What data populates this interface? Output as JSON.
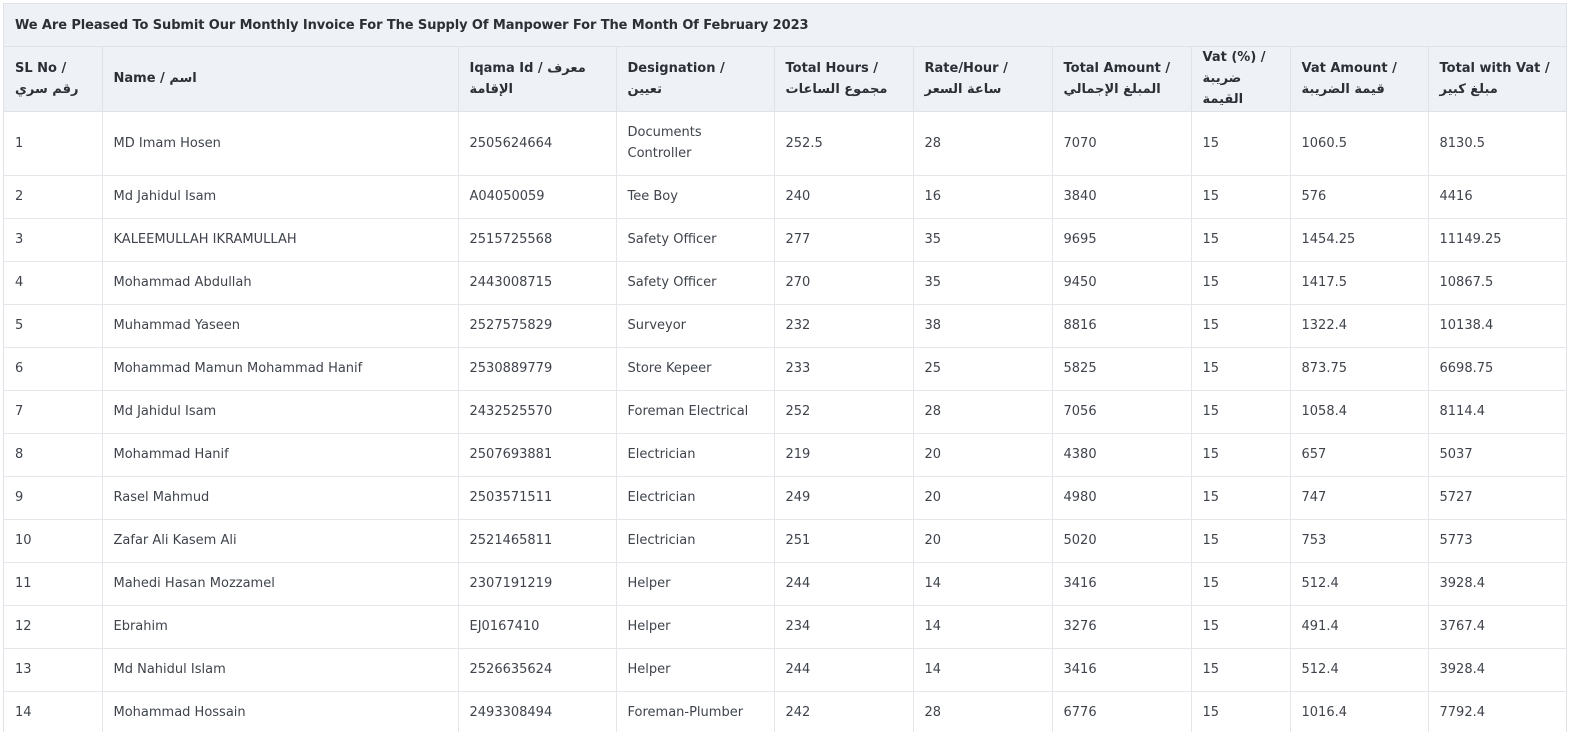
{
  "invoice": {
    "title": "We Are Pleased To Submit Our Monthly Invoice For The Supply Of Manpower For The Month Of February 2023",
    "columns": [
      "SL No / رقم سري",
      "Name / اسم",
      "Iqama Id / معرف الإقامة",
      "Designation / تعيين",
      "Total Hours / مجموع الساعات",
      "Rate/Hour / ساعة السعر",
      "Total Amount / المبلغ الإجمالي",
      "Vat (%) / ضريبة القيمة",
      "Vat Amount / قيمة الضريبة",
      "Total with Vat / مبلغ كبير"
    ],
    "rows": [
      {
        "sl": "1",
        "name": "MD Imam Hosen",
        "iqama": "2505624664",
        "designation": "Documents Controller",
        "hours": "252.5",
        "rate": "28",
        "amount": "7070",
        "vat_pct": "15",
        "vat_amount": "1060.5",
        "total": "8130.5"
      },
      {
        "sl": "2",
        "name": "Md Jahidul Isam",
        "iqama": "A04050059",
        "designation": "Tee Boy",
        "hours": "240",
        "rate": "16",
        "amount": "3840",
        "vat_pct": "15",
        "vat_amount": "576",
        "total": "4416"
      },
      {
        "sl": "3",
        "name": "KALEEMULLAH IKRAMULLAH",
        "iqama": "2515725568",
        "designation": "Safety Officer",
        "hours": "277",
        "rate": "35",
        "amount": "9695",
        "vat_pct": "15",
        "vat_amount": "1454.25",
        "total": "11149.25"
      },
      {
        "sl": "4",
        "name": "Mohammad Abdullah",
        "iqama": "2443008715",
        "designation": "Safety Officer",
        "hours": "270",
        "rate": "35",
        "amount": "9450",
        "vat_pct": "15",
        "vat_amount": "1417.5",
        "total": "10867.5"
      },
      {
        "sl": "5",
        "name": "Muhammad Yaseen",
        "iqama": "2527575829",
        "designation": "Surveyor",
        "hours": "232",
        "rate": "38",
        "amount": "8816",
        "vat_pct": "15",
        "vat_amount": "1322.4",
        "total": "10138.4"
      },
      {
        "sl": "6",
        "name": "Mohammad Mamun Mohammad Hanif",
        "iqama": "2530889779",
        "designation": "Store Kepeer",
        "hours": "233",
        "rate": "25",
        "amount": "5825",
        "vat_pct": "15",
        "vat_amount": "873.75",
        "total": "6698.75"
      },
      {
        "sl": "7",
        "name": "Md Jahidul Isam",
        "iqama": "2432525570",
        "designation": "Foreman Electrical",
        "hours": "252",
        "rate": "28",
        "amount": "7056",
        "vat_pct": "15",
        "vat_amount": "1058.4",
        "total": "8114.4"
      },
      {
        "sl": "8",
        "name": "Mohammad Hanif",
        "iqama": "2507693881",
        "designation": "Electrician",
        "hours": "219",
        "rate": "20",
        "amount": "4380",
        "vat_pct": "15",
        "vat_amount": "657",
        "total": "5037"
      },
      {
        "sl": "9",
        "name": "Rasel Mahmud",
        "iqama": "2503571511",
        "designation": "Electrician",
        "hours": "249",
        "rate": "20",
        "amount": "4980",
        "vat_pct": "15",
        "vat_amount": "747",
        "total": "5727"
      },
      {
        "sl": "10",
        "name": "Zafar Ali Kasem Ali",
        "iqama": "2521465811",
        "designation": "Electrician",
        "hours": "251",
        "rate": "20",
        "amount": "5020",
        "vat_pct": "15",
        "vat_amount": "753",
        "total": "5773"
      },
      {
        "sl": "11",
        "name": "Mahedi Hasan Mozzamel",
        "iqama": "2307191219",
        "designation": "Helper",
        "hours": "244",
        "rate": "14",
        "amount": "3416",
        "vat_pct": "15",
        "vat_amount": "512.4",
        "total": "3928.4"
      },
      {
        "sl": "12",
        "name": "Ebrahim",
        "iqama": "EJ0167410",
        "designation": "Helper",
        "hours": "234",
        "rate": "14",
        "amount": "3276",
        "vat_pct": "15",
        "vat_amount": "491.4",
        "total": "3767.4"
      },
      {
        "sl": "13",
        "name": "Md Nahidul Islam",
        "iqama": "2526635624",
        "designation": "Helper",
        "hours": "244",
        "rate": "14",
        "amount": "3416",
        "vat_pct": "15",
        "vat_amount": "512.4",
        "total": "3928.4"
      },
      {
        "sl": "14",
        "name": "Mohammad Hossain",
        "iqama": "2493308494",
        "designation": "Foreman-Plumber",
        "hours": "242",
        "rate": "28",
        "amount": "6776",
        "vat_pct": "15",
        "vat_amount": "1016.4",
        "total": "7792.4"
      }
    ]
  }
}
